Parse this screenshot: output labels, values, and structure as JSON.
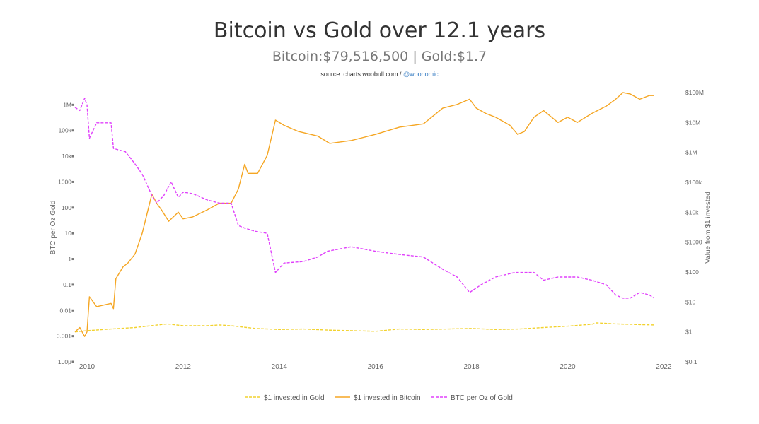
{
  "header": {
    "title": "Bitcoin vs Gold over 12.1 years",
    "subtitle": "Bitcoin:$79,516,500 | Gold:$1.7",
    "source_prefix": "source: charts.woobull.com / ",
    "source_handle": "@woonomic"
  },
  "chart_data": {
    "type": "line",
    "title": "Bitcoin vs Gold over 12.1 years",
    "subtitle": "Bitcoin:$79,516,500 | Gold:$1.7",
    "xlabel": "",
    "ylabel_left": "BTC per Oz Gold",
    "ylabel_right": "Value from $1 invested",
    "y_scale": "log",
    "xlim": [
      2009.75,
      2021.95
    ],
    "ylim_left": [
      0.0001,
      3000000
    ],
    "ylim_right": [
      0.1,
      100000000
    ],
    "x_ticks": [
      "2010",
      "2012",
      "2014",
      "2016",
      "2018",
      "2020",
      "2022"
    ],
    "y_left_ticks": [
      "1M",
      "100k",
      "10k",
      "1000",
      "100",
      "10",
      "1",
      "0.1",
      "0.01",
      "0.001",
      "100µ"
    ],
    "y_right_ticks": [
      "$100M",
      "$10M",
      "$1M",
      "$100k",
      "$10k",
      "$1000",
      "$100",
      "$10",
      "$1",
      "$0.1"
    ],
    "legend_position": "bottom",
    "grid": false,
    "colors": {
      "gold": "#f2d22e",
      "bitcoin": "#f5a623",
      "ratio": "#e040fb"
    },
    "series": [
      {
        "name": "$1 invested in Gold",
        "axis": "right",
        "style": "dashed",
        "x": [
          2009.75,
          2010.0,
          2010.5,
          2011.0,
          2011.67,
          2012.0,
          2012.5,
          2012.75,
          2013.0,
          2013.5,
          2014.0,
          2014.5,
          2015.0,
          2015.5,
          2016.0,
          2016.5,
          2017.0,
          2017.5,
          2018.0,
          2018.5,
          2019.0,
          2019.5,
          2020.0,
          2020.5,
          2020.6,
          2021.0,
          2021.5,
          2021.8
        ],
        "values": [
          1.0,
          1.1,
          1.25,
          1.4,
          1.85,
          1.6,
          1.6,
          1.7,
          1.6,
          1.3,
          1.2,
          1.25,
          1.15,
          1.1,
          1.05,
          1.25,
          1.2,
          1.25,
          1.3,
          1.2,
          1.25,
          1.4,
          1.55,
          1.8,
          2.0,
          1.85,
          1.75,
          1.7
        ]
      },
      {
        "name": "$1 invested in Bitcoin",
        "axis": "right",
        "style": "solid",
        "x": [
          2009.75,
          2009.85,
          2009.95,
          2010.0,
          2010.05,
          2010.2,
          2010.5,
          2010.55,
          2010.6,
          2010.75,
          2010.85,
          2011.0,
          2011.15,
          2011.35,
          2011.45,
          2011.55,
          2011.7,
          2011.9,
          2012.0,
          2012.2,
          2012.5,
          2012.75,
          2013.0,
          2013.15,
          2013.28,
          2013.35,
          2013.55,
          2013.75,
          2013.92,
          2014.1,
          2014.4,
          2014.8,
          2015.05,
          2015.5,
          2016.0,
          2016.5,
          2017.0,
          2017.4,
          2017.7,
          2017.96,
          2018.1,
          2018.3,
          2018.5,
          2018.8,
          2018.96,
          2019.1,
          2019.3,
          2019.5,
          2019.8,
          2020.0,
          2020.2,
          2020.5,
          2020.8,
          2021.0,
          2021.15,
          2021.3,
          2021.5,
          2021.7,
          2021.8
        ],
        "values": [
          1.0,
          1.4,
          0.7,
          1.0,
          15,
          7,
          9,
          6,
          60,
          150,
          200,
          400,
          2000,
          40000,
          20000,
          12000,
          5000,
          10000,
          6000,
          7000,
          12000,
          20000,
          20000,
          60000,
          400000,
          200000,
          200000,
          800000,
          12000000,
          8000000,
          5000000,
          3500000,
          2000000,
          2500000,
          4000000,
          7000000,
          9000000,
          30000000,
          40000000,
          60000000,
          30000000,
          20000000,
          15000000,
          8000000,
          4000000,
          5000000,
          15000000,
          25000000,
          10000000,
          15000000,
          10000000,
          20000000,
          35000000,
          60000000,
          100000000,
          90000000,
          60000000,
          80000000,
          79516500
        ]
      },
      {
        "name": "BTC per Oz of Gold",
        "axis": "left",
        "style": "dashed",
        "x": [
          2009.75,
          2009.85,
          2009.95,
          2010.0,
          2010.05,
          2010.2,
          2010.5,
          2010.55,
          2010.8,
          2011.0,
          2011.15,
          2011.35,
          2011.45,
          2011.6,
          2011.75,
          2011.9,
          2012.0,
          2012.2,
          2012.5,
          2012.75,
          2013.0,
          2013.15,
          2013.28,
          2013.5,
          2013.75,
          2013.92,
          2014.1,
          2014.5,
          2014.8,
          2015.0,
          2015.5,
          2016.0,
          2016.5,
          2017.0,
          2017.4,
          2017.7,
          2017.96,
          2018.2,
          2018.5,
          2018.9,
          2019.1,
          2019.3,
          2019.5,
          2019.8,
          2020.0,
          2020.2,
          2020.5,
          2020.8,
          2021.0,
          2021.15,
          2021.3,
          2021.5,
          2021.7,
          2021.8
        ],
        "values": [
          800000,
          600000,
          1800000,
          1000000,
          50000,
          200000,
          200000,
          20000,
          15000,
          5000,
          2000,
          300,
          150,
          300,
          1000,
          250,
          400,
          350,
          200,
          150,
          150,
          20,
          16,
          12,
          10,
          0.3,
          0.7,
          0.8,
          1.2,
          2,
          3,
          2,
          1.5,
          1.2,
          0.4,
          0.2,
          0.05,
          0.1,
          0.2,
          0.3,
          0.3,
          0.3,
          0.15,
          0.2,
          0.2,
          0.2,
          0.15,
          0.1,
          0.04,
          0.03,
          0.03,
          0.05,
          0.04,
          0.03
        ]
      }
    ]
  }
}
